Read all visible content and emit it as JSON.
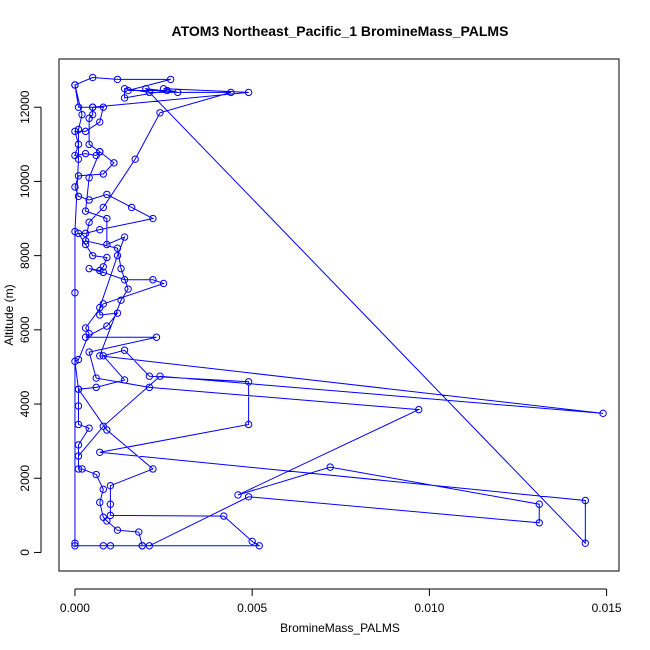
{
  "chart_data": {
    "type": "line",
    "title": "ATOM3 Northeast_Pacific_1 BromineMass_PALMS",
    "xlabel": "BromineMass_PALMS",
    "ylabel": "Altitude (m)",
    "xlim": [
      -0.00045,
      0.01535
    ],
    "ylim": [
      -500,
      13300
    ],
    "x_ticks": [
      0,
      0.005,
      0.01,
      0.015
    ],
    "x_tick_labels": [
      "0.000",
      "0.005",
      "0.010",
      "0.015"
    ],
    "y_ticks": [
      0,
      2000,
      4000,
      6000,
      8000,
      10000,
      12000
    ],
    "y_tick_labels": [
      "0",
      "2000",
      "4000",
      "6000",
      "8000",
      "10000",
      "12000"
    ],
    "grid": false,
    "legend": "none",
    "series_color": "#0000ff",
    "points": [
      [
        0.0,
        12600
      ],
      [
        0.0001,
        12000
      ],
      [
        0.0005,
        12000
      ],
      [
        0.0008,
        12000
      ],
      [
        0.0007,
        11600
      ],
      [
        0.0003,
        11350
      ],
      [
        0.0,
        11350
      ],
      [
        0.0001,
        11000
      ],
      [
        0.0,
        10700
      ],
      [
        0.0003,
        10750
      ],
      [
        0.0006,
        10700
      ],
      [
        0.0007,
        10800
      ],
      [
        0.0011,
        10500
      ],
      [
        0.0008,
        10200
      ],
      [
        0.0001,
        10150
      ],
      [
        0.0,
        9850
      ],
      [
        0.0001,
        9600
      ],
      [
        0.0004,
        9500
      ],
      [
        0.0009,
        9650
      ],
      [
        0.0016,
        9300
      ],
      [
        0.0022,
        9000
      ],
      [
        0.0007,
        8700
      ],
      [
        0.0003,
        8600
      ],
      [
        0.0001,
        8600
      ],
      [
        0.0003,
        8300
      ],
      [
        0.0005,
        8000
      ],
      [
        0.0009,
        7950
      ],
      [
        0.0008,
        7700
      ],
      [
        0.0007,
        7600
      ],
      [
        0.0004,
        7650
      ],
      [
        0.0008,
        7550
      ],
      [
        0.0014,
        7350
      ],
      [
        0.0022,
        7350
      ],
      [
        0.0025,
        7250
      ],
      [
        0.0008,
        6700
      ],
      [
        0.0003,
        6050
      ],
      [
        0.0004,
        5900
      ],
      [
        0.0001,
        5200
      ],
      [
        0.0,
        5150
      ],
      [
        0.0001,
        4400
      ],
      [
        0.0001,
        3950
      ],
      [
        0.0001,
        3450
      ],
      [
        0.0004,
        3350
      ],
      [
        0.0001,
        2900
      ],
      [
        0.0001,
        2250
      ],
      [
        0.0002,
        2250
      ],
      [
        0.0006,
        2100
      ],
      [
        0.0008,
        1700
      ],
      [
        0.0007,
        1350
      ],
      [
        0.0008,
        950
      ],
      [
        0.0009,
        850
      ],
      [
        0.0012,
        600
      ],
      [
        0.0018,
        550
      ],
      [
        0.0019,
        180
      ],
      [
        0.0052,
        180
      ],
      [
        0.005,
        300
      ],
      [
        0.0042,
        980
      ],
      [
        0.001,
        1000
      ],
      [
        0.001,
        1300
      ],
      [
        0.001,
        1800
      ],
      [
        0.0022,
        2250
      ],
      [
        0.0009,
        3300
      ],
      [
        0.0001,
        4400
      ],
      [
        0.0006,
        4450
      ],
      [
        0.0014,
        4650
      ],
      [
        0.0008,
        5300
      ],
      [
        0.0014,
        5450
      ],
      [
        0.0021,
        4750
      ],
      [
        0.0049,
        4600
      ],
      [
        0.0049,
        3450
      ],
      [
        0.0007,
        2700
      ],
      [
        0.0144,
        1400
      ],
      [
        0.0144,
        250
      ],
      [
        0.002,
        12500
      ],
      [
        0.0029,
        12400
      ],
      [
        0.0025,
        12500
      ],
      [
        0.0049,
        12400
      ],
      [
        0.0005,
        12000
      ],
      [
        0.0005,
        11800
      ],
      [
        0.0004,
        11700
      ],
      [
        0.0004,
        11000
      ],
      [
        0.0007,
        10800
      ],
      [
        0.0004,
        10100
      ],
      [
        0.0003,
        9200
      ],
      [
        0.0009,
        9000
      ],
      [
        0.0009,
        8300
      ],
      [
        0.0014,
        8500
      ],
      [
        0.0012,
        8000
      ],
      [
        0.0007,
        6600
      ],
      [
        0.0007,
        6400
      ],
      [
        0.0012,
        6450
      ],
      [
        0.0009,
        6100
      ],
      [
        0.0003,
        5800
      ],
      [
        0.0023,
        5800
      ],
      [
        0.0004,
        5400
      ],
      [
        0.0006,
        4700
      ],
      [
        0.0021,
        4450
      ],
      [
        0.0097,
        3850
      ],
      [
        0.0046,
        1550
      ],
      [
        0.0072,
        2300
      ],
      [
        0.0131,
        1300
      ],
      [
        0.0131,
        800
      ],
      [
        0.0049,
        1500
      ],
      [
        0.0021,
        180
      ],
      [
        0.0008,
        180
      ],
      [
        0.0019,
        180
      ],
      [
        0.001,
        180
      ],
      [
        0.0,
        180
      ],
      [
        0.0,
        250
      ],
      [
        0.0,
        7000
      ],
      [
        0.0,
        8650
      ],
      [
        0.0001,
        10600
      ],
      [
        0.0001,
        11400
      ],
      [
        0.0002,
        11800
      ],
      [
        0.0,
        12600
      ],
      [
        0.0005,
        12800
      ],
      [
        0.0012,
        12750
      ],
      [
        0.0027,
        12750
      ],
      [
        0.0015,
        12450
      ],
      [
        0.0026,
        12450
      ],
      [
        0.0014,
        12250
      ],
      [
        0.0014,
        12500
      ],
      [
        0.0021,
        12400
      ],
      [
        0.0044,
        12400
      ],
      [
        0.0024,
        11850
      ],
      [
        0.0017,
        10600
      ],
      [
        0.0008,
        9300
      ],
      [
        0.0004,
        8900
      ],
      [
        0.0003,
        8400
      ],
      [
        0.0012,
        8200
      ],
      [
        0.0013,
        7650
      ],
      [
        0.0015,
        7100
      ],
      [
        0.0013,
        6800
      ],
      [
        0.0007,
        5300
      ],
      [
        0.0149,
        3750
      ],
      [
        0.0024,
        4750
      ],
      [
        0.0008,
        3400
      ],
      [
        0.0001,
        2600
      ]
    ]
  }
}
